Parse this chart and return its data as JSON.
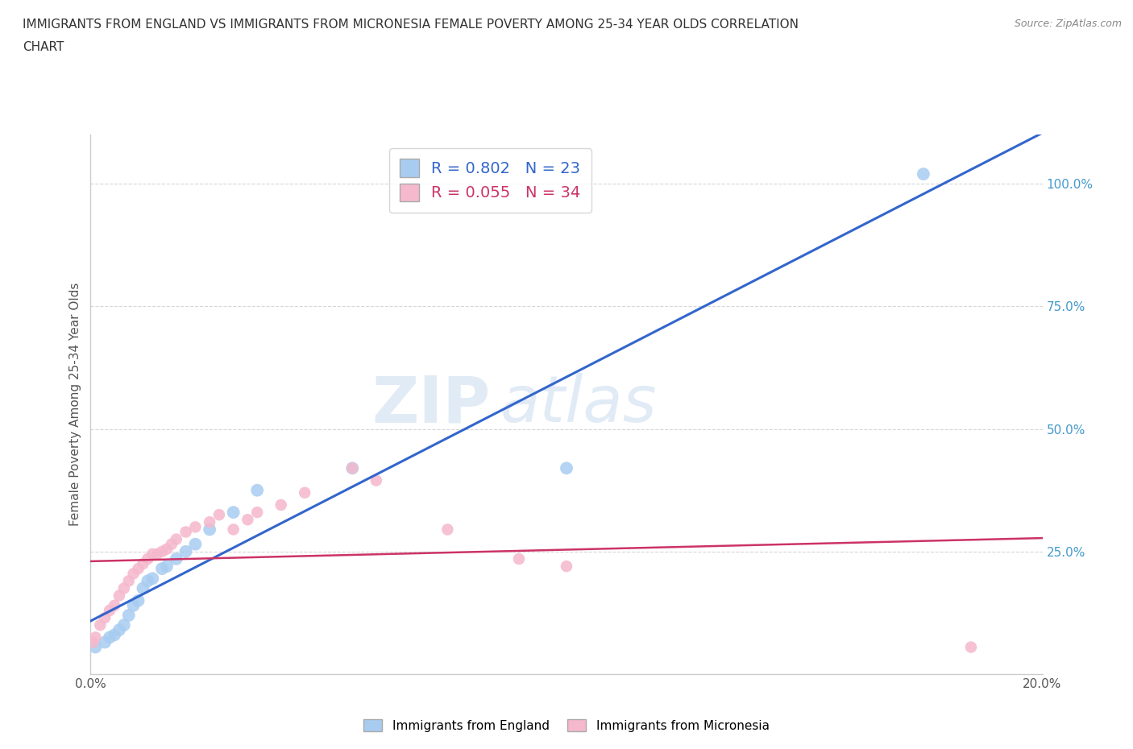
{
  "title_line1": "IMMIGRANTS FROM ENGLAND VS IMMIGRANTS FROM MICRONESIA FEMALE POVERTY AMONG 25-34 YEAR OLDS CORRELATION",
  "title_line2": "CHART",
  "source_text": "Source: ZipAtlas.com",
  "ylabel": "Female Poverty Among 25-34 Year Olds",
  "england_label": "Immigrants from England",
  "micronesia_label": "Immigrants from Micronesia",
  "england_R": 0.802,
  "england_N": 23,
  "micronesia_R": 0.055,
  "micronesia_N": 34,
  "england_color": "#a8ccf0",
  "micronesia_color": "#f5b8cc",
  "england_line_color": "#3366cc",
  "micronesia_line_color": "#cc3366",
  "watermark_zip": "ZIP",
  "watermark_atlas": "atlas",
  "xlim": [
    0.0,
    0.2
  ],
  "ylim": [
    0.0,
    1.1
  ],
  "xticks": [
    0.0,
    0.05,
    0.1,
    0.15,
    0.2
  ],
  "yticks": [
    0.25,
    0.5,
    0.75,
    1.0
  ],
  "xtick_labels": [
    "0.0%",
    "",
    "",
    "",
    "20.0%"
  ],
  "ytick_labels": [
    "25.0%",
    "50.0%",
    "75.0%",
    "100.0%"
  ],
  "england_x": [
    0.001,
    0.003,
    0.004,
    0.005,
    0.006,
    0.007,
    0.008,
    0.009,
    0.01,
    0.011,
    0.012,
    0.013,
    0.015,
    0.016,
    0.018,
    0.02,
    0.022,
    0.025,
    0.03,
    0.035,
    0.055,
    0.1,
    0.175
  ],
  "england_y": [
    0.055,
    0.065,
    0.075,
    0.08,
    0.09,
    0.1,
    0.12,
    0.14,
    0.15,
    0.175,
    0.19,
    0.195,
    0.215,
    0.22,
    0.235,
    0.25,
    0.265,
    0.295,
    0.33,
    0.375,
    0.42,
    0.42,
    1.02
  ],
  "micronesia_x": [
    0.0005,
    0.001,
    0.002,
    0.003,
    0.004,
    0.005,
    0.006,
    0.007,
    0.008,
    0.009,
    0.01,
    0.011,
    0.012,
    0.013,
    0.014,
    0.015,
    0.016,
    0.017,
    0.018,
    0.02,
    0.022,
    0.025,
    0.027,
    0.03,
    0.033,
    0.035,
    0.04,
    0.045,
    0.055,
    0.06,
    0.075,
    0.09,
    0.1,
    0.185
  ],
  "micronesia_y": [
    0.065,
    0.075,
    0.1,
    0.115,
    0.13,
    0.14,
    0.16,
    0.175,
    0.19,
    0.205,
    0.215,
    0.225,
    0.235,
    0.245,
    0.245,
    0.25,
    0.255,
    0.265,
    0.275,
    0.29,
    0.3,
    0.31,
    0.325,
    0.295,
    0.315,
    0.33,
    0.345,
    0.37,
    0.42,
    0.395,
    0.295,
    0.235,
    0.22,
    0.055
  ],
  "background_color": "#ffffff",
  "grid_color": "#cccccc"
}
